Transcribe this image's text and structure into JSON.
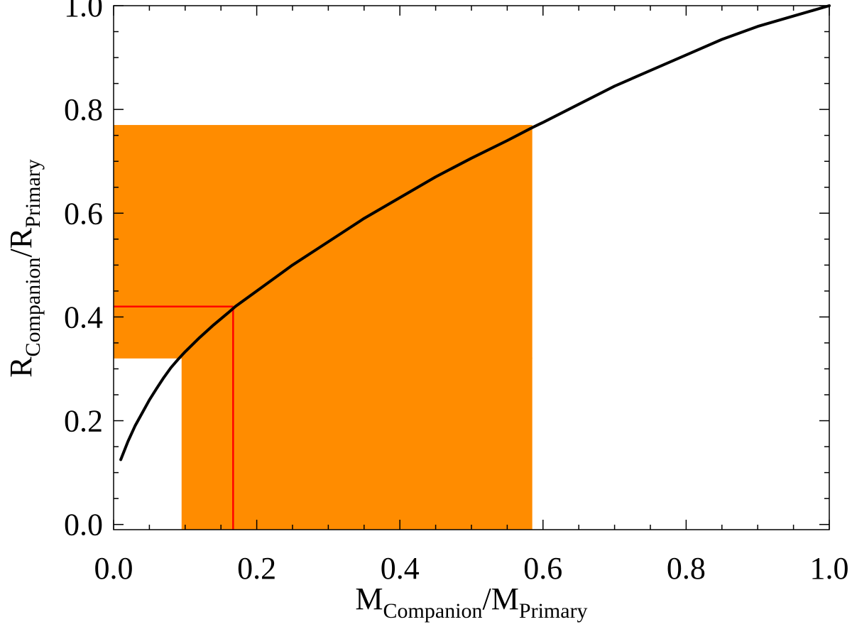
{
  "chart_data": {
    "type": "line",
    "title": "",
    "xlabel": {
      "main": "M",
      "sub": "Companion",
      "sep": "/M",
      "sub2": "Primary"
    },
    "ylabel": {
      "main": "R",
      "sub": "Companion",
      "sep": "/R",
      "sub2": "Primary"
    },
    "xlim": [
      0.0,
      1.0
    ],
    "ylim": [
      -0.01,
      1.0
    ],
    "x_ticks": [
      "0.0",
      "0.2",
      "0.4",
      "0.6",
      "0.8",
      "1.0"
    ],
    "y_ticks": [
      "0.0",
      "0.2",
      "0.4",
      "0.6",
      "0.8",
      "1.0"
    ],
    "series": [
      {
        "color": "#000000",
        "x": [
          0.01,
          0.02,
          0.03,
          0.04,
          0.05,
          0.06,
          0.07,
          0.08,
          0.09,
          0.1,
          0.12,
          0.14,
          0.16,
          0.17,
          0.2,
          0.25,
          0.3,
          0.35,
          0.4,
          0.45,
          0.5,
          0.55,
          0.585,
          0.6,
          0.65,
          0.7,
          0.75,
          0.8,
          0.85,
          0.9,
          0.95,
          1.0
        ],
        "y": [
          0.125,
          0.16,
          0.19,
          0.215,
          0.24,
          0.262,
          0.283,
          0.302,
          0.318,
          0.333,
          0.36,
          0.385,
          0.408,
          0.42,
          0.45,
          0.5,
          0.545,
          0.59,
          0.63,
          0.67,
          0.706,
          0.74,
          0.765,
          0.775,
          0.81,
          0.845,
          0.875,
          0.905,
          0.935,
          0.96,
          0.98,
          1.0
        ]
      }
    ],
    "shaded_region": {
      "color": "#ff8c00",
      "x_range": [
        0.095,
        0.585
      ],
      "y_range": [
        0.32,
        0.77
      ]
    },
    "reference_point": {
      "color": "#ff0000",
      "x": 0.167,
      "y": 0.42
    },
    "grid": false,
    "legend": "none"
  }
}
